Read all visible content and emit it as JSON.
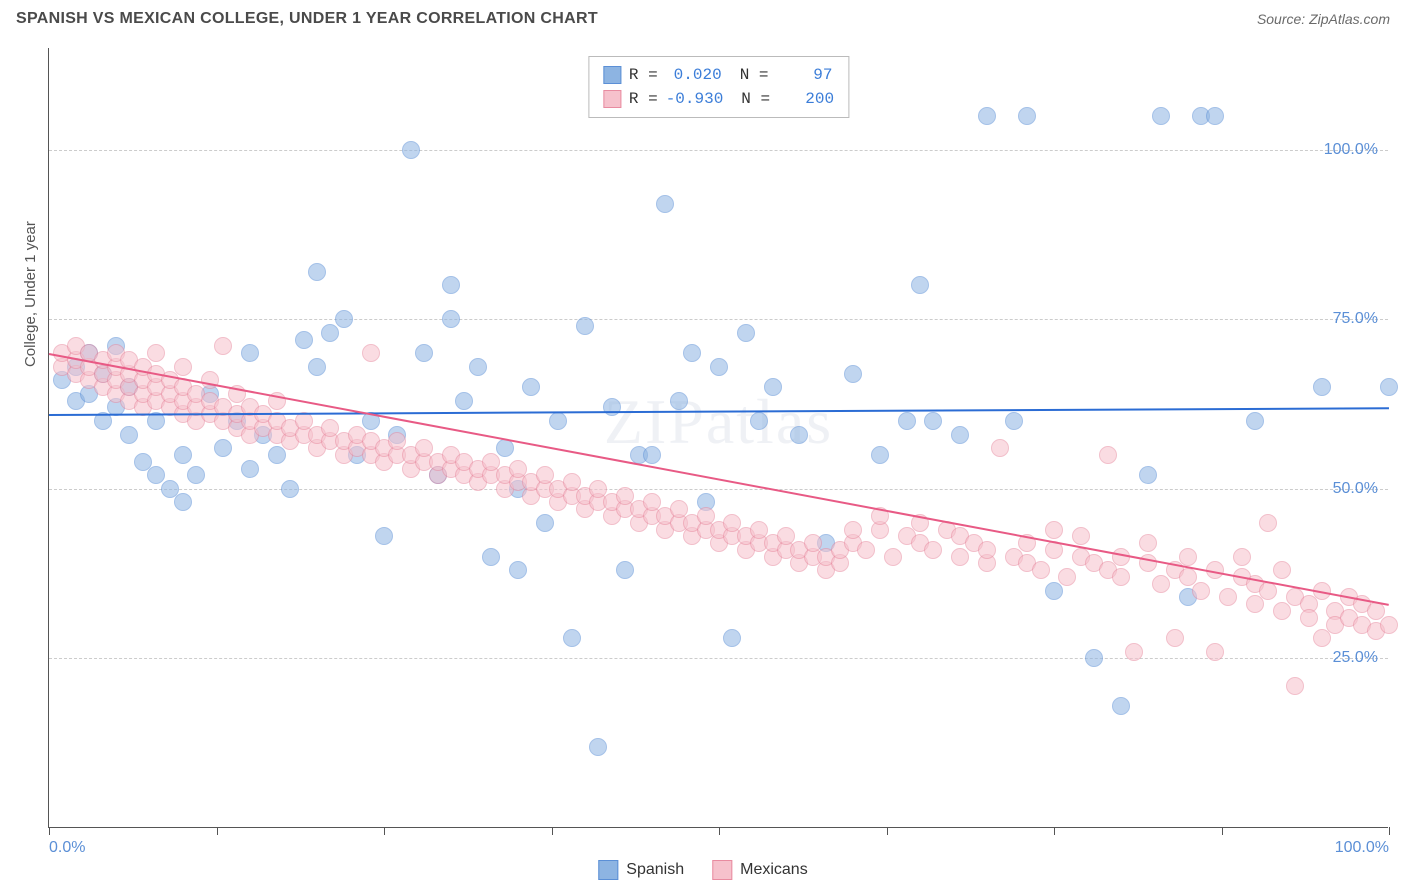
{
  "title": "SPANISH VS MEXICAN COLLEGE, UNDER 1 YEAR CORRELATION CHART",
  "source": "Source: ZipAtlas.com",
  "ylabel": "College, Under 1 year",
  "watermark": "ZIPatlas",
  "chart": {
    "type": "scatter",
    "xlim": [
      0,
      100
    ],
    "ylim": [
      0,
      115
    ],
    "y_gridlines": [
      25,
      50,
      75,
      100
    ],
    "y_tick_labels": [
      "25.0%",
      "50.0%",
      "75.0%",
      "100.0%"
    ],
    "x_ticks": [
      0,
      12.5,
      25,
      37.5,
      50,
      62.5,
      75,
      87.5,
      100
    ],
    "x_tick_labels": {
      "0": "0.0%",
      "100": "100.0%"
    },
    "background_color": "#ffffff",
    "grid_color": "#cccccc",
    "axis_color": "#555555",
    "tick_label_color": "#5b8fd6",
    "point_radius": 9,
    "point_opacity": 0.55,
    "series": [
      {
        "name": "Spanish",
        "color": "#8db4e2",
        "border": "#5b8fd6",
        "R": "0.020",
        "N": "97",
        "trend": {
          "y_at_x0": 61,
          "y_at_x100": 62,
          "color": "#2b6cd4"
        },
        "points": [
          [
            1,
            66
          ],
          [
            2,
            63
          ],
          [
            2,
            68
          ],
          [
            3,
            64
          ],
          [
            3,
            70
          ],
          [
            4,
            60
          ],
          [
            4,
            67
          ],
          [
            5,
            62
          ],
          [
            5,
            71
          ],
          [
            6,
            58
          ],
          [
            6,
            65
          ],
          [
            7,
            54
          ],
          [
            8,
            60
          ],
          [
            8,
            52
          ],
          [
            9,
            50
          ],
          [
            10,
            55
          ],
          [
            10,
            48
          ],
          [
            11,
            52
          ],
          [
            12,
            64
          ],
          [
            13,
            56
          ],
          [
            14,
            60
          ],
          [
            15,
            53
          ],
          [
            15,
            70
          ],
          [
            16,
            58
          ],
          [
            17,
            55
          ],
          [
            18,
            50
          ],
          [
            19,
            72
          ],
          [
            20,
            68
          ],
          [
            20,
            82
          ],
          [
            21,
            73
          ],
          [
            22,
            75
          ],
          [
            23,
            55
          ],
          [
            24,
            60
          ],
          [
            25,
            43
          ],
          [
            26,
            58
          ],
          [
            27,
            100
          ],
          [
            28,
            70
          ],
          [
            29,
            52
          ],
          [
            30,
            80
          ],
          [
            30,
            75
          ],
          [
            31,
            63
          ],
          [
            32,
            68
          ],
          [
            33,
            40
          ],
          [
            34,
            56
          ],
          [
            35,
            38
          ],
          [
            35,
            50
          ],
          [
            36,
            65
          ],
          [
            37,
            45
          ],
          [
            38,
            60
          ],
          [
            39,
            28
          ],
          [
            40,
            74
          ],
          [
            41,
            12
          ],
          [
            42,
            62
          ],
          [
            43,
            38
          ],
          [
            44,
            55
          ],
          [
            45,
            55
          ],
          [
            46,
            92
          ],
          [
            47,
            63
          ],
          [
            48,
            70
          ],
          [
            49,
            48
          ],
          [
            50,
            68
          ],
          [
            51,
            28
          ],
          [
            52,
            73
          ],
          [
            53,
            60
          ],
          [
            54,
            65
          ],
          [
            56,
            58
          ],
          [
            58,
            42
          ],
          [
            60,
            67
          ],
          [
            62,
            55
          ],
          [
            64,
            60
          ],
          [
            65,
            80
          ],
          [
            66,
            60
          ],
          [
            68,
            58
          ],
          [
            70,
            105
          ],
          [
            72,
            60
          ],
          [
            73,
            105
          ],
          [
            75,
            35
          ],
          [
            78,
            25
          ],
          [
            80,
            18
          ],
          [
            82,
            52
          ],
          [
            83,
            105
          ],
          [
            85,
            34
          ],
          [
            86,
            105
          ],
          [
            87,
            105
          ],
          [
            90,
            60
          ],
          [
            95,
            65
          ],
          [
            100,
            65
          ]
        ]
      },
      {
        "name": "Mexicans",
        "color": "#f6c1cc",
        "border": "#e88ba0",
        "R": "-0.930",
        "N": "200",
        "trend": {
          "y_at_x0": 70,
          "y_at_x100": 33,
          "color": "#e85a85"
        },
        "points": [
          [
            1,
            68
          ],
          [
            1,
            70
          ],
          [
            2,
            67
          ],
          [
            2,
            69
          ],
          [
            2,
            71
          ],
          [
            3,
            66
          ],
          [
            3,
            68
          ],
          [
            3,
            70
          ],
          [
            4,
            65
          ],
          [
            4,
            67
          ],
          [
            4,
            69
          ],
          [
            5,
            64
          ],
          [
            5,
            66
          ],
          [
            5,
            68
          ],
          [
            5,
            70
          ],
          [
            6,
            63
          ],
          [
            6,
            65
          ],
          [
            6,
            67
          ],
          [
            6,
            69
          ],
          [
            7,
            62
          ],
          [
            7,
            64
          ],
          [
            7,
            66
          ],
          [
            7,
            68
          ],
          [
            8,
            63
          ],
          [
            8,
            65
          ],
          [
            8,
            67
          ],
          [
            8,
            70
          ],
          [
            9,
            62
          ],
          [
            9,
            64
          ],
          [
            9,
            66
          ],
          [
            10,
            61
          ],
          [
            10,
            63
          ],
          [
            10,
            65
          ],
          [
            10,
            68
          ],
          [
            11,
            60
          ],
          [
            11,
            62
          ],
          [
            11,
            64
          ],
          [
            12,
            61
          ],
          [
            12,
            63
          ],
          [
            12,
            66
          ],
          [
            13,
            60
          ],
          [
            13,
            62
          ],
          [
            13,
            71
          ],
          [
            14,
            59
          ],
          [
            14,
            61
          ],
          [
            14,
            64
          ],
          [
            15,
            58
          ],
          [
            15,
            60
          ],
          [
            15,
            62
          ],
          [
            16,
            59
          ],
          [
            16,
            61
          ],
          [
            17,
            58
          ],
          [
            17,
            60
          ],
          [
            17,
            63
          ],
          [
            18,
            57
          ],
          [
            18,
            59
          ],
          [
            19,
            58
          ],
          [
            19,
            60
          ],
          [
            20,
            56
          ],
          [
            20,
            58
          ],
          [
            21,
            57
          ],
          [
            21,
            59
          ],
          [
            22,
            55
          ],
          [
            22,
            57
          ],
          [
            23,
            56
          ],
          [
            23,
            58
          ],
          [
            24,
            55
          ],
          [
            24,
            57
          ],
          [
            24,
            70
          ],
          [
            25,
            54
          ],
          [
            25,
            56
          ],
          [
            26,
            55
          ],
          [
            26,
            57
          ],
          [
            27,
            53
          ],
          [
            27,
            55
          ],
          [
            28,
            54
          ],
          [
            28,
            56
          ],
          [
            29,
            52
          ],
          [
            29,
            54
          ],
          [
            30,
            53
          ],
          [
            30,
            55
          ],
          [
            31,
            52
          ],
          [
            31,
            54
          ],
          [
            32,
            51
          ],
          [
            32,
            53
          ],
          [
            33,
            52
          ],
          [
            33,
            54
          ],
          [
            34,
            50
          ],
          [
            34,
            52
          ],
          [
            35,
            51
          ],
          [
            35,
            53
          ],
          [
            36,
            49
          ],
          [
            36,
            51
          ],
          [
            37,
            50
          ],
          [
            37,
            52
          ],
          [
            38,
            48
          ],
          [
            38,
            50
          ],
          [
            39,
            49
          ],
          [
            39,
            51
          ],
          [
            40,
            47
          ],
          [
            40,
            49
          ],
          [
            41,
            48
          ],
          [
            41,
            50
          ],
          [
            42,
            46
          ],
          [
            42,
            48
          ],
          [
            43,
            47
          ],
          [
            43,
            49
          ],
          [
            44,
            45
          ],
          [
            44,
            47
          ],
          [
            45,
            46
          ],
          [
            45,
            48
          ],
          [
            46,
            44
          ],
          [
            46,
            46
          ],
          [
            47,
            45
          ],
          [
            47,
            47
          ],
          [
            48,
            43
          ],
          [
            48,
            45
          ],
          [
            49,
            44
          ],
          [
            49,
            46
          ],
          [
            50,
            42
          ],
          [
            50,
            44
          ],
          [
            51,
            43
          ],
          [
            51,
            45
          ],
          [
            52,
            41
          ],
          [
            52,
            43
          ],
          [
            53,
            42
          ],
          [
            53,
            44
          ],
          [
            54,
            40
          ],
          [
            54,
            42
          ],
          [
            55,
            41
          ],
          [
            55,
            43
          ],
          [
            56,
            39
          ],
          [
            56,
            41
          ],
          [
            57,
            40
          ],
          [
            57,
            42
          ],
          [
            58,
            38
          ],
          [
            58,
            40
          ],
          [
            59,
            39
          ],
          [
            59,
            41
          ],
          [
            60,
            42
          ],
          [
            60,
            44
          ],
          [
            61,
            41
          ],
          [
            62,
            44
          ],
          [
            62,
            46
          ],
          [
            63,
            40
          ],
          [
            64,
            43
          ],
          [
            65,
            42
          ],
          [
            65,
            45
          ],
          [
            66,
            41
          ],
          [
            67,
            44
          ],
          [
            68,
            40
          ],
          [
            68,
            43
          ],
          [
            69,
            42
          ],
          [
            70,
            39
          ],
          [
            70,
            41
          ],
          [
            71,
            56
          ],
          [
            72,
            40
          ],
          [
            73,
            39
          ],
          [
            73,
            42
          ],
          [
            74,
            38
          ],
          [
            75,
            41
          ],
          [
            75,
            44
          ],
          [
            76,
            37
          ],
          [
            77,
            40
          ],
          [
            77,
            43
          ],
          [
            78,
            39
          ],
          [
            79,
            38
          ],
          [
            79,
            55
          ],
          [
            80,
            37
          ],
          [
            80,
            40
          ],
          [
            81,
            26
          ],
          [
            82,
            39
          ],
          [
            82,
            42
          ],
          [
            83,
            36
          ],
          [
            84,
            38
          ],
          [
            84,
            28
          ],
          [
            85,
            37
          ],
          [
            85,
            40
          ],
          [
            86,
            35
          ],
          [
            87,
            38
          ],
          [
            87,
            26
          ],
          [
            88,
            34
          ],
          [
            89,
            37
          ],
          [
            89,
            40
          ],
          [
            90,
            33
          ],
          [
            90,
            36
          ],
          [
            91,
            35
          ],
          [
            91,
            45
          ],
          [
            92,
            32
          ],
          [
            92,
            38
          ],
          [
            93,
            34
          ],
          [
            93,
            21
          ],
          [
            94,
            33
          ],
          [
            94,
            31
          ],
          [
            95,
            35
          ],
          [
            95,
            28
          ],
          [
            96,
            32
          ],
          [
            96,
            30
          ],
          [
            97,
            34
          ],
          [
            97,
            31
          ],
          [
            98,
            30
          ],
          [
            98,
            33
          ],
          [
            99,
            29
          ],
          [
            99,
            32
          ],
          [
            100,
            30
          ]
        ]
      }
    ]
  },
  "stats_legend": {
    "R_label": "R =",
    "N_label": "N ="
  },
  "bottom_legend": [
    {
      "label": "Spanish",
      "fill": "#8db4e2",
      "border": "#5b8fd6"
    },
    {
      "label": "Mexicans",
      "fill": "#f6c1cc",
      "border": "#e88ba0"
    }
  ]
}
